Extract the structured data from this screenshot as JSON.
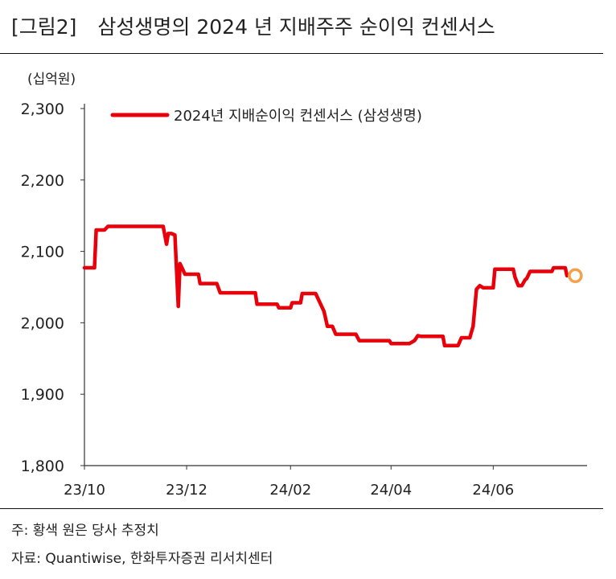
{
  "header": {
    "figure_label": "[그림2]",
    "title": "삼성생명의 2024 년 지배주주 순이익 컨센서스"
  },
  "footer": {
    "note": "주: 황색 원은 당사 추정치",
    "source": "자료: Quantiwise, 한화투자증권 리서치센터"
  },
  "chart_data": {
    "type": "line",
    "title": "",
    "unit_label": "(십억원)",
    "xlabel": "",
    "ylabel": "",
    "ylim": [
      1800,
      2300
    ],
    "yticks": [
      1800,
      1900,
      2000,
      2100,
      2200,
      2300
    ],
    "ytick_labels": [
      "1,800",
      "1,900",
      "2,000",
      "2,100",
      "2,200",
      "2,300"
    ],
    "xlim": [
      "2023-10-01",
      "2024-07-27"
    ],
    "xticks": [
      "2023-10-01",
      "2023-12-01",
      "2024-02-01",
      "2024-04-01",
      "2024-06-01"
    ],
    "xtick_labels": [
      "23/10",
      "23/12",
      "24/02",
      "24/04",
      "24/06"
    ],
    "legend_position": "top",
    "grid": false,
    "series": [
      {
        "name": "2024년 지배순이익 컨센서스 (삼성생명)",
        "color": "#e8000b",
        "points": [
          [
            "2023-10-01",
            2077
          ],
          [
            "2023-10-07",
            2077
          ],
          [
            "2023-10-08",
            2130
          ],
          [
            "2023-10-13",
            2130
          ],
          [
            "2023-10-15",
            2135
          ],
          [
            "2023-11-17",
            2135
          ],
          [
            "2023-11-19",
            2110
          ],
          [
            "2023-11-20",
            2125
          ],
          [
            "2023-11-22",
            2125
          ],
          [
            "2023-11-24",
            2123
          ],
          [
            "2023-11-26",
            2023
          ],
          [
            "2023-11-27",
            2083
          ],
          [
            "2023-11-30",
            2068
          ],
          [
            "2023-12-08",
            2068
          ],
          [
            "2023-12-09",
            2055
          ],
          [
            "2023-12-19",
            2055
          ],
          [
            "2023-12-21",
            2042
          ],
          [
            "2024-01-11",
            2042
          ],
          [
            "2024-01-12",
            2026
          ],
          [
            "2024-01-24",
            2026
          ],
          [
            "2024-01-25",
            2021
          ],
          [
            "2024-02-01",
            2021
          ],
          [
            "2024-02-02",
            2028
          ],
          [
            "2024-02-07",
            2028
          ],
          [
            "2024-02-08",
            2041
          ],
          [
            "2024-02-16",
            2041
          ],
          [
            "2024-02-21",
            2016
          ],
          [
            "2024-02-23",
            1995
          ],
          [
            "2024-02-26",
            1995
          ],
          [
            "2024-02-28",
            1984
          ],
          [
            "2024-03-11",
            1984
          ],
          [
            "2024-03-13",
            1975
          ],
          [
            "2024-03-31",
            1975
          ],
          [
            "2024-04-01",
            1971
          ],
          [
            "2024-04-12",
            1971
          ],
          [
            "2024-04-15",
            1975
          ],
          [
            "2024-04-17",
            1982
          ],
          [
            "2024-04-19",
            1981
          ],
          [
            "2024-05-02",
            1981
          ],
          [
            "2024-05-03",
            1968
          ],
          [
            "2024-05-11",
            1968
          ],
          [
            "2024-05-13",
            1979
          ],
          [
            "2024-05-18",
            1979
          ],
          [
            "2024-05-20",
            1995
          ],
          [
            "2024-05-22",
            2047
          ],
          [
            "2024-05-24",
            2052
          ],
          [
            "2024-05-26",
            2049
          ],
          [
            "2024-06-01",
            2049
          ],
          [
            "2024-06-02",
            2075
          ],
          [
            "2024-06-13",
            2075
          ],
          [
            "2024-06-14",
            2064
          ],
          [
            "2024-06-16",
            2052
          ],
          [
            "2024-06-18",
            2052
          ],
          [
            "2024-06-20",
            2060
          ],
          [
            "2024-06-21",
            2062
          ],
          [
            "2024-06-23",
            2072
          ],
          [
            "2024-07-06",
            2072
          ],
          [
            "2024-07-07",
            2077
          ],
          [
            "2024-07-14",
            2077
          ],
          [
            "2024-07-15",
            2066
          ]
        ]
      }
    ],
    "estimate": {
      "date": "2024-07-20",
      "value": 2066,
      "color": "#f5a04a"
    }
  }
}
